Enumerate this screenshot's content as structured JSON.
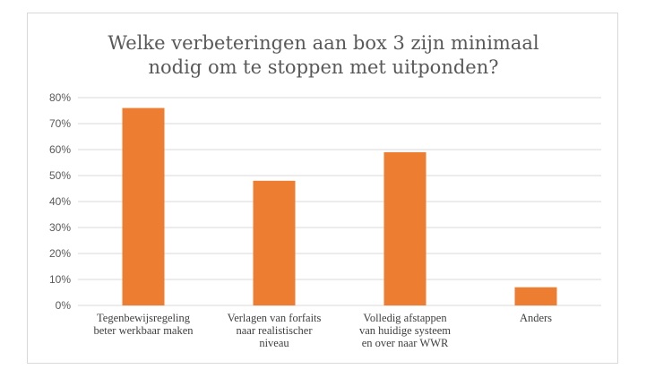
{
  "chart_data": {
    "type": "bar",
    "title": [
      "Welke verbeteringen aan box 3 zijn minimaal",
      "nodig om te stoppen met uitponden?"
    ],
    "categories": [
      [
        "Tegenbewijsregeling",
        "beter werkbaar maken"
      ],
      [
        "Verlagen van forfaits",
        "naar realistischer",
        "niveau"
      ],
      [
        "Volledig afstappen",
        "van huidige systeem",
        "en over naar WWR"
      ],
      [
        "Anders"
      ]
    ],
    "values": [
      0.76,
      0.48,
      0.59,
      0.07
    ],
    "ylim": [
      0,
      0.8
    ],
    "yticks": [
      "0%",
      "10%",
      "20%",
      "30%",
      "40%",
      "50%",
      "60%",
      "70%",
      "80%"
    ],
    "bar_color": "#ED7D31",
    "grid": true,
    "legend": "none"
  }
}
